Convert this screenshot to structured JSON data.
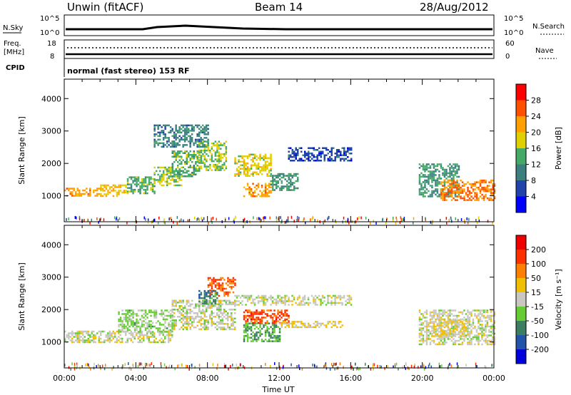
{
  "header": {
    "station": "Unwin (fitACF)",
    "beam": "Beam 14",
    "date": "28/Aug/2012"
  },
  "status_panels": {
    "nsky_label": "N.Sky",
    "nsearch_label": "N.Search",
    "nsky_ticks": [
      "10^5",
      "10^0"
    ],
    "nsearch_ticks": [
      "10^5",
      "10^0"
    ],
    "freq_label_line1": "Freq.",
    "freq_label_line2": "[MHz]",
    "freq_ticks": [
      "18",
      "8"
    ],
    "nave_label": "Nave",
    "nave_ticks": [
      "60",
      "0"
    ],
    "cpid_label": "CPID",
    "cpid_text": "normal (fast stereo) 153 RF"
  },
  "chart_data": [
    {
      "type": "heatmap",
      "title": "",
      "xlabel": "",
      "ylabel": "Slant Range [km]",
      "xlim": [
        0,
        24
      ],
      "ylim": [
        200,
        4600
      ],
      "y_ticks": [
        "1000",
        "2000",
        "3000",
        "4000"
      ],
      "colorbar": {
        "label": "Power [dB]",
        "ticks": [
          "4",
          "8",
          "12",
          "16",
          "20",
          "24",
          "28"
        ],
        "range": [
          0,
          32
        ],
        "colors": [
          "#0000ff",
          "#2244aa",
          "#3b7f7f",
          "#44aa66",
          "#e0d000",
          "#ffa000",
          "#ff5000",
          "#ff0000"
        ]
      },
      "bands": [
        {
          "t0": 0.0,
          "t1": 2.0,
          "r0": 1000,
          "r1": 1250,
          "value": 22
        },
        {
          "t0": 2.0,
          "t1": 3.5,
          "r0": 1000,
          "r1": 1350,
          "value": 20
        },
        {
          "t0": 3.5,
          "t1": 5.0,
          "r0": 1050,
          "r1": 1600,
          "value": 14
        },
        {
          "t0": 5.0,
          "t1": 6.5,
          "r0": 1300,
          "r1": 1900,
          "value": 16
        },
        {
          "t0": 6.0,
          "t1": 7.5,
          "r0": 1600,
          "r1": 2400,
          "value": 14
        },
        {
          "t0": 7.5,
          "t1": 9.0,
          "r0": 1800,
          "r1": 2700,
          "value": 16
        },
        {
          "t0": 5.0,
          "t1": 8.0,
          "r0": 2500,
          "r1": 3200,
          "value": 10
        },
        {
          "t0": 9.5,
          "t1": 11.5,
          "r0": 1600,
          "r1": 2300,
          "value": 18
        },
        {
          "t0": 10.0,
          "t1": 11.5,
          "r0": 1000,
          "r1": 1400,
          "value": 22
        },
        {
          "t0": 11.5,
          "t1": 13.0,
          "r0": 1200,
          "r1": 1700,
          "value": 12
        },
        {
          "t0": 12.5,
          "t1": 16.0,
          "r0": 2100,
          "r1": 2500,
          "value": 6
        },
        {
          "t0": 19.8,
          "t1": 22.0,
          "r0": 1000,
          "r1": 2000,
          "value": 12
        },
        {
          "t0": 21.0,
          "t1": 24.0,
          "r0": 850,
          "r1": 1500,
          "value": 24
        }
      ]
    },
    {
      "type": "heatmap",
      "title": "",
      "xlabel": "Time UT",
      "ylabel": "Slant Range [km]",
      "xlim": [
        0,
        24
      ],
      "ylim": [
        200,
        4600
      ],
      "x_ticks": [
        "00:00",
        "04:00",
        "08:00",
        "12:00",
        "16:00",
        "20:00",
        "00:00"
      ],
      "y_ticks": [
        "1000",
        "2000",
        "3000",
        "4000"
      ],
      "colorbar": {
        "label": "Velocity [m s⁻¹]",
        "ticks": [
          "200",
          "100",
          "50",
          "15",
          "-15",
          "-50",
          "-100",
          "-200"
        ],
        "range": [
          -250,
          250
        ],
        "colors": [
          "#0000dd",
          "#2255aa",
          "#3b7f60",
          "#66cc33",
          "#c8c8c0",
          "#f0c000",
          "#ff8000",
          "#ff3000",
          "#ee0000"
        ]
      },
      "bands": [
        {
          "t0": 0.0,
          "t1": 6.0,
          "r0": 1000,
          "r1": 1350,
          "value": 0
        },
        {
          "t0": 6.0,
          "t1": 9.5,
          "r0": 1400,
          "r1": 2300,
          "value": 0
        },
        {
          "t0": 3.0,
          "t1": 6.0,
          "r0": 1300,
          "r1": 2000,
          "value": -40
        },
        {
          "t0": 8.0,
          "t1": 9.5,
          "r0": 2400,
          "r1": 3000,
          "value": 150
        },
        {
          "t0": 7.5,
          "t1": 8.5,
          "r0": 2200,
          "r1": 2600,
          "value": -120
        },
        {
          "t0": 10.0,
          "t1": 12.0,
          "r0": 1000,
          "r1": 1600,
          "value": -80
        },
        {
          "t0": 10.0,
          "t1": 12.5,
          "r0": 1600,
          "r1": 2000,
          "value": 160
        },
        {
          "t0": 12.0,
          "t1": 15.5,
          "r0": 1450,
          "r1": 1650,
          "value": 30
        },
        {
          "t0": 9.5,
          "t1": 16.0,
          "r0": 2150,
          "r1": 2450,
          "value": 0
        },
        {
          "t0": 19.8,
          "t1": 24.0,
          "r0": 900,
          "r1": 2000,
          "value": 0
        },
        {
          "t0": 20.5,
          "t1": 22.5,
          "r0": 1200,
          "r1": 1700,
          "value": 30
        }
      ]
    }
  ]
}
